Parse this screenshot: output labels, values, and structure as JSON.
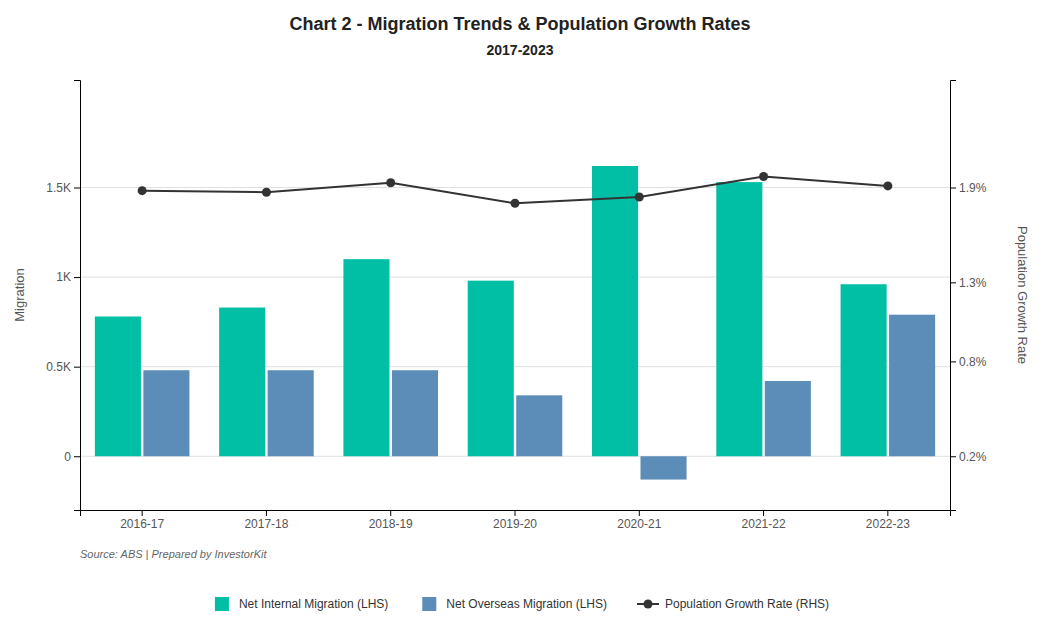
{
  "chart_data": {
    "type": "bar",
    "title": "Chart 2 - Migration Trends & Population Growth Rates",
    "subtitle": "2017-2023",
    "categories": [
      "2016-17",
      "2017-18",
      "2018-19",
      "2019-20",
      "2020-21",
      "2021-22",
      "2022-23"
    ],
    "series": [
      {
        "name": "Net Internal Migration (LHS)",
        "type": "bar",
        "color": "#00BFA5",
        "values": [
          780,
          830,
          1100,
          980,
          1620,
          1530,
          960
        ]
      },
      {
        "name": "Net Overseas Migration (LHS)",
        "type": "bar",
        "color": "#5B8DB8",
        "values": [
          480,
          480,
          480,
          340,
          -130,
          420,
          790
        ]
      },
      {
        "name": "Population Growth Rate (RHS)",
        "type": "line",
        "axis": "y2",
        "color": "#333333",
        "marker": "circle",
        "line_style": "solid",
        "values": [
          1.88,
          1.87,
          1.93,
          1.8,
          1.84,
          1.97,
          1.91
        ]
      }
    ],
    "ylim": [
      -300,
      2100
    ],
    "yticks": [
      0,
      {
        "value": 500,
        "label": "0.5K"
      },
      {
        "value": 1000,
        "label": "1K"
      },
      {
        "value": 1500,
        "label": "1.5K"
      }
    ],
    "y2lim": [
      -0.14,
      2.58
    ],
    "y2ticks": [
      {
        "value": 0.2,
        "label": "0.2%"
      },
      {
        "value": 0.8,
        "label": "0.8%"
      },
      {
        "value": 1.3,
        "label": "1.3%"
      },
      {
        "value": 1.9,
        "label": "1.9%"
      }
    ],
    "ylabel": "Migration",
    "y2label": "Population Growth Rate",
    "annotations": [
      "Source: ABS | Prepared by InvestorKit"
    ],
    "grid": true,
    "legend": "bottom"
  }
}
